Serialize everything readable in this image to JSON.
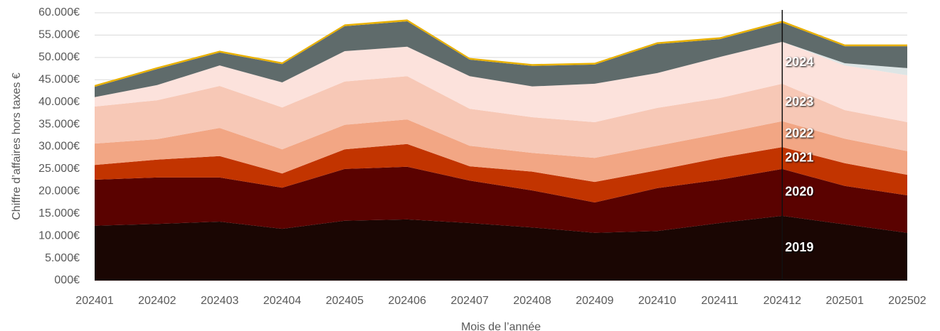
{
  "chart_data": {
    "type": "stacked_area",
    "x_label": "Mois de l’année",
    "y_label": "Chiffre d’affaires hors taxes €",
    "categories": [
      "202401",
      "202402",
      "202403",
      "202404",
      "202405",
      "202406",
      "202407",
      "202408",
      "202409",
      "202410",
      "202411",
      "202412",
      "202501",
      "202502"
    ],
    "series": [
      {
        "name": "2019",
        "color": "#1a0603",
        "values": [
          12300,
          12700,
          13200,
          11600,
          13400,
          13700,
          12900,
          11900,
          10700,
          11100,
          12900,
          14500,
          12600,
          10700
        ]
      },
      {
        "name": "2020",
        "color": "#5a0200",
        "values": [
          10300,
          10400,
          9900,
          9200,
          11600,
          11800,
          9500,
          8300,
          6800,
          9600,
          9700,
          10500,
          8600,
          8400
        ]
      },
      {
        "name": "2021",
        "color": "#c23400",
        "values": [
          3300,
          4000,
          4800,
          3200,
          4400,
          5100,
          3200,
          4200,
          4600,
          4000,
          4900,
          4900,
          5100,
          4600
        ]
      },
      {
        "name": "2022",
        "color": "#f2a684",
        "values": [
          4800,
          4600,
          6300,
          5400,
          5500,
          5500,
          4600,
          4200,
          5400,
          5500,
          5400,
          5800,
          5500,
          5300
        ]
      },
      {
        "name": "2023",
        "color": "#f7c8b6",
        "values": [
          8300,
          8700,
          9400,
          9400,
          9700,
          9700,
          8300,
          8000,
          8000,
          8500,
          8000,
          8400,
          6400,
          6500
        ]
      },
      {
        "name": "2024",
        "color": "#fce2dc",
        "values": [
          2100,
          3400,
          4600,
          5600,
          6800,
          6600,
          7300,
          6900,
          8600,
          7800,
          9200,
          9400,
          10000,
          10500
        ]
      },
      {
        "color": "#dde5e5",
        "values": [
          0,
          0,
          0,
          0,
          0,
          0,
          0,
          0,
          0,
          0,
          0,
          0,
          500,
          1600
        ]
      },
      {
        "color": "#5f6b6b",
        "values": [
          2300,
          3600,
          2900,
          4100,
          5600,
          5700,
          3700,
          4600,
          4300,
          6500,
          4000,
          4300,
          3800,
          4900
        ]
      },
      {
        "color": "#e8b000",
        "values": [
          400,
          400,
          400,
          400,
          400,
          400,
          400,
          400,
          400,
          400,
          400,
          400,
          400,
          400
        ]
      }
    ],
    "ylim": [
      0,
      60000
    ],
    "yticks": [
      {
        "value": 0,
        "label": "000€"
      },
      {
        "value": 5000,
        "label": "5.000€"
      },
      {
        "value": 10000,
        "label": "10.000€"
      },
      {
        "value": 15000,
        "label": "15.000€"
      },
      {
        "value": 20000,
        "label": "20.000€"
      },
      {
        "value": 25000,
        "label": "25.000€"
      },
      {
        "value": 30000,
        "label": "30.000€"
      },
      {
        "value": 35000,
        "label": "35.000€"
      },
      {
        "value": 40000,
        "label": "40.000€"
      },
      {
        "value": 45000,
        "label": "45.000€"
      },
      {
        "value": 50000,
        "label": "50.000€"
      },
      {
        "value": 55000,
        "label": "55.000€"
      },
      {
        "value": 60000,
        "label": "60.000€"
      }
    ],
    "grid": true
  }
}
